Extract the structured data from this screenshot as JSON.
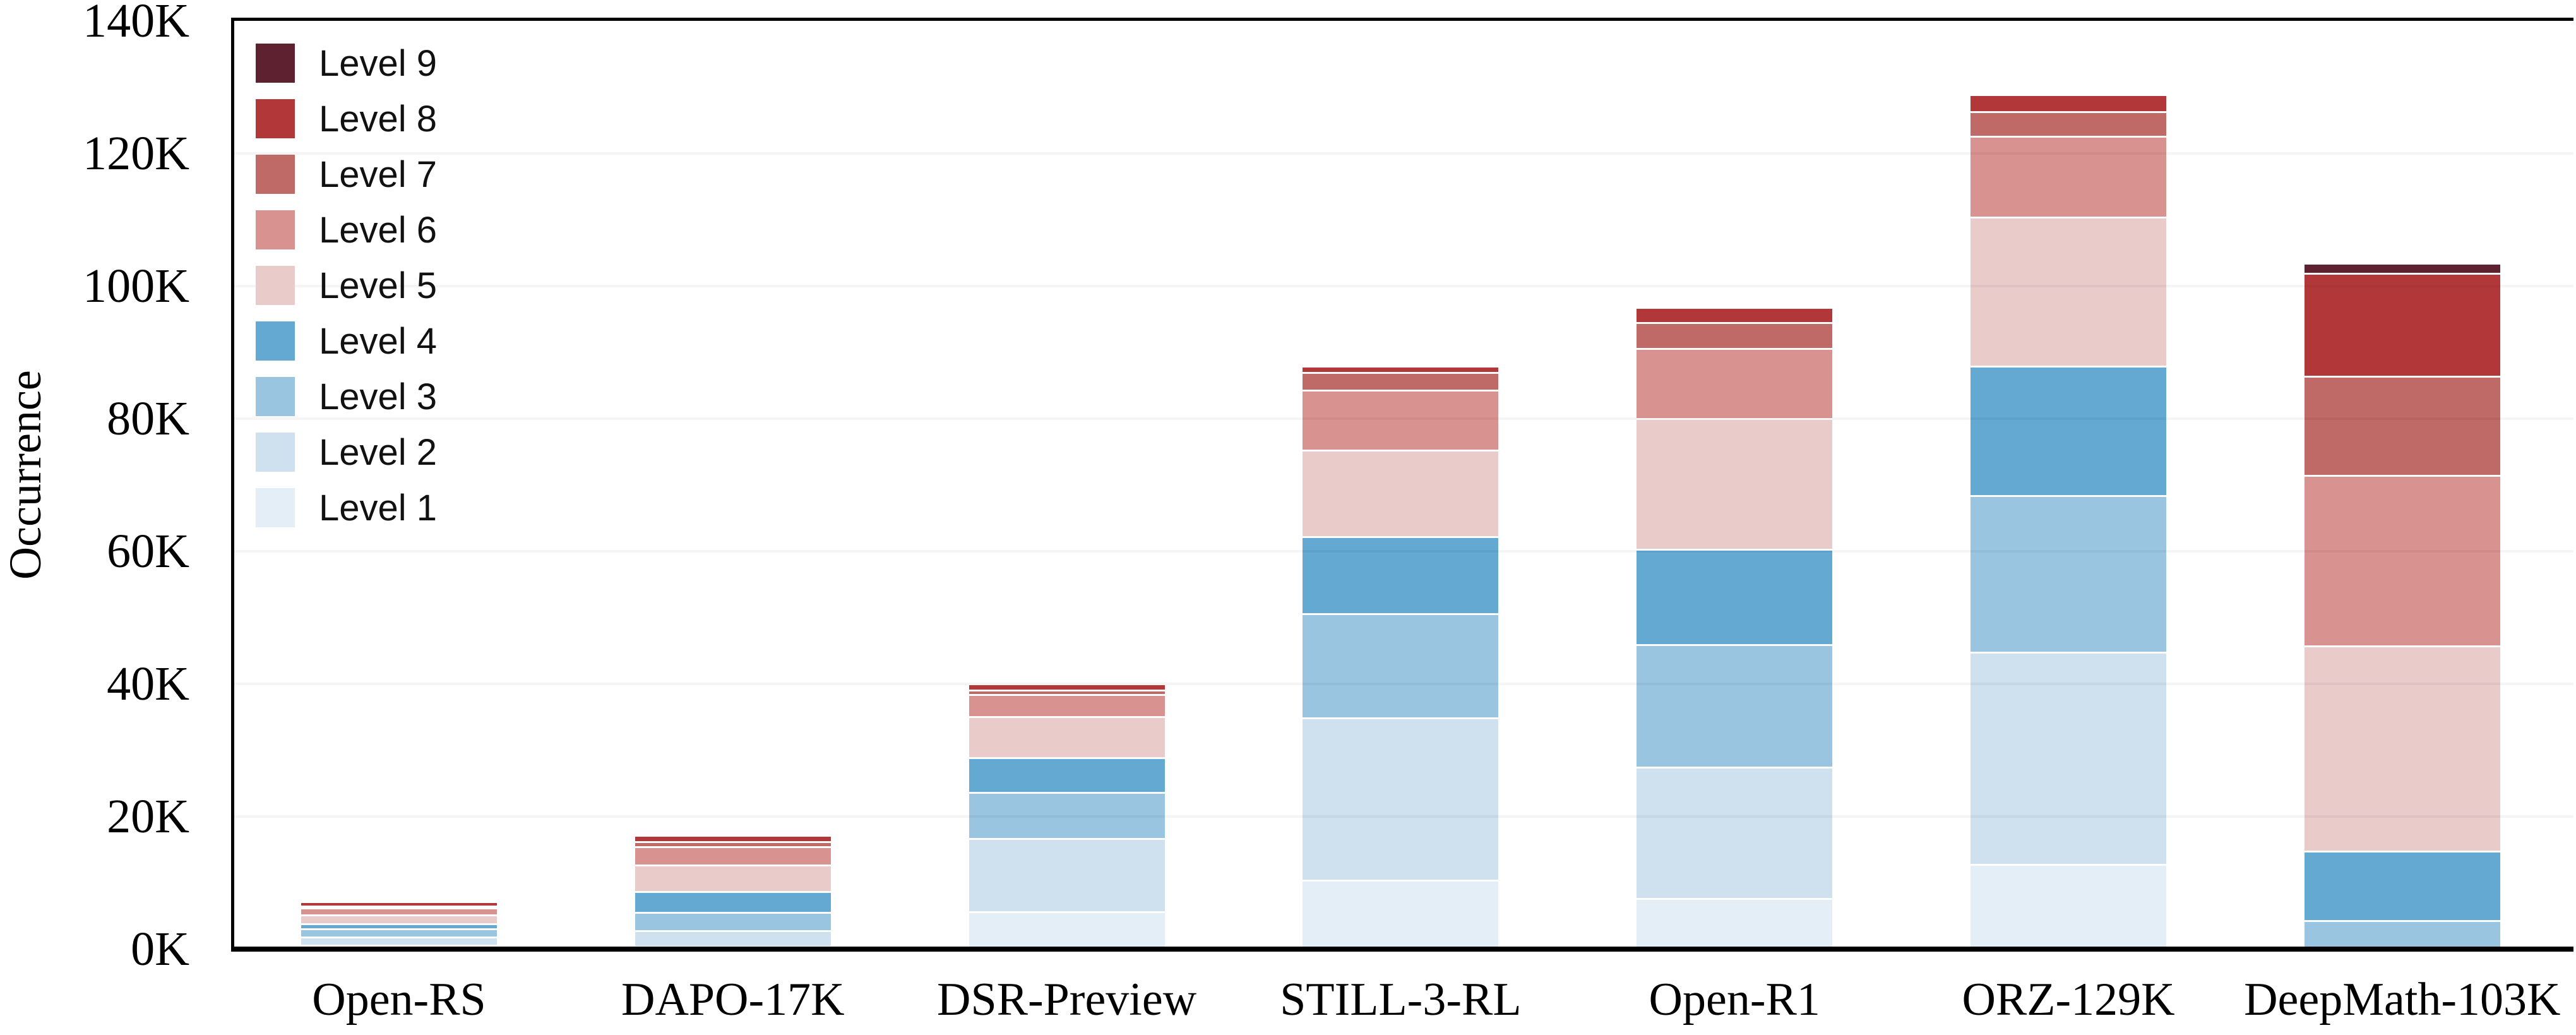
{
  "chart_data": {
    "type": "bar",
    "stacked": true,
    "title": "",
    "xlabel": "",
    "ylabel": "Occurrence",
    "units": "K",
    "ylim": [
      0,
      140
    ],
    "ytick_values": [
      0,
      20,
      40,
      60,
      80,
      100,
      120,
      140
    ],
    "ytick_labels": [
      "0K",
      "20K",
      "40K",
      "60K",
      "80K",
      "100K",
      "120K",
      "140K"
    ],
    "grid": true,
    "legend_position": "top-left",
    "legend_order_top_to_bottom": [
      "Level 9",
      "Level 8",
      "Level 7",
      "Level 6",
      "Level 5",
      "Level 4",
      "Level 3",
      "Level 2",
      "Level 1"
    ],
    "categories": [
      "Open-RS",
      "DAPO-17K",
      "DSR-Preview",
      "STILL-3-RL",
      "Open-R1",
      "ORZ-129K",
      "DeepMath-103K"
    ],
    "series": [
      {
        "name": "Level 1",
        "color": "#e4eef7",
        "values": [
          0.5,
          0.3,
          5.6,
          10.3,
          7.6,
          12.7,
          0
        ]
      },
      {
        "name": "Level 2",
        "color": "#cfe0ee",
        "values": [
          1.3,
          2.4,
          11.0,
          24.5,
          19.8,
          32.0,
          0
        ]
      },
      {
        "name": "Level 3",
        "color": "#9ac5e1",
        "values": [
          1.2,
          2.8,
          7.0,
          15.7,
          18.5,
          23.6,
          4.2
        ]
      },
      {
        "name": "Level 4",
        "color": "#63a9d2",
        "values": [
          0.8,
          3.1,
          5.2,
          11.6,
          14.3,
          19.6,
          10.5
        ]
      },
      {
        "name": "Level 5",
        "color": "#e9cbca",
        "values": [
          1.3,
          4.0,
          6.2,
          13.1,
          19.8,
          22.4,
          31.0
        ]
      },
      {
        "name": "Level 6",
        "color": "#d89290",
        "values": [
          1.0,
          2.8,
          3.3,
          9.0,
          10.5,
          12.2,
          25.7
        ]
      },
      {
        "name": "Level 7",
        "color": "#c06a67",
        "values": [
          0.35,
          0.7,
          0.7,
          2.7,
          3.9,
          3.7,
          14.9
        ]
      },
      {
        "name": "Level 8",
        "color": "#b13739",
        "values": [
          0.55,
          0.85,
          0.8,
          0.8,
          2.2,
          2.5,
          15.6
        ]
      },
      {
        "name": "Level 9",
        "color": "#5e2130",
        "values": [
          0,
          0,
          0,
          0,
          0,
          0,
          1.3
        ]
      }
    ],
    "approx_totals": [
      7,
      17,
      40,
      88,
      97,
      129,
      103
    ]
  }
}
